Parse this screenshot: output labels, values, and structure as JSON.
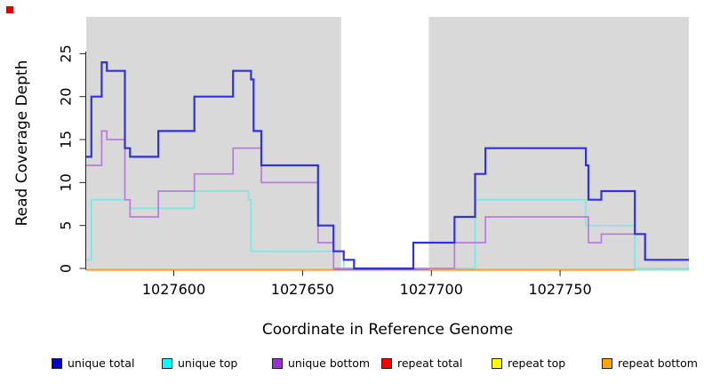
{
  "chart_data": {
    "type": "line",
    "subtype": "step",
    "title": "",
    "xlabel": "Coordinate in Reference Genome",
    "ylabel": "Read Coverage Depth",
    "xlim": [
      1027566,
      1027800
    ],
    "ylim": [
      0,
      29.3
    ],
    "x_ticks": [
      1027600,
      1027650,
      1027700,
      1027750
    ],
    "y_ticks": [
      0,
      5,
      10,
      15,
      20,
      25
    ],
    "grid": false,
    "legend_position": "bottom",
    "plot_background": {
      "color": "#D9D9D9",
      "regions": [
        [
          1027566,
          1027665
        ],
        [
          1027699,
          1027800
        ]
      ],
      "gap_note": "white band between 1027665 and 1027699"
    },
    "series": [
      {
        "name": "unique total",
        "color": "#3030E8",
        "width": 2.2,
        "x": [
          1027566,
          1027568,
          1027572,
          1027574,
          1027581,
          1027583,
          1027594,
          1027608,
          1027623,
          1027630,
          1027631,
          1027634,
          1027656,
          1027662,
          1027666,
          1027670,
          1027693,
          1027709,
          1027717,
          1027721,
          1027760,
          1027761,
          1027766,
          1027779,
          1027783
        ],
        "values": [
          13,
          20,
          24,
          23,
          14,
          13,
          16,
          20,
          23,
          22,
          16,
          12,
          5,
          2,
          1,
          0,
          3,
          6,
          11,
          14,
          12,
          8,
          9,
          4,
          1
        ]
      },
      {
        "name": "unique top",
        "color": "#7FE6E6",
        "width": 1.7,
        "x": [
          1027566,
          1027568,
          1027583,
          1027608,
          1027629,
          1027630,
          1027666,
          1027717,
          1027760,
          1027779
        ],
        "values": [
          1,
          8,
          7,
          9,
          8,
          2,
          0,
          8,
          5,
          0
        ]
      },
      {
        "name": "unique bottom",
        "color": "#B77BDB",
        "width": 1.7,
        "x": [
          1027566,
          1027572,
          1027574,
          1027581,
          1027583,
          1027594,
          1027608,
          1027623,
          1027634,
          1027656,
          1027662,
          1027709,
          1027721,
          1027761,
          1027766,
          1027783
        ],
        "values": [
          12,
          16,
          15,
          8,
          6,
          9,
          11,
          14,
          10,
          3,
          0,
          3,
          6,
          3,
          4,
          1
        ]
      },
      {
        "name": "repeat total",
        "flat_value": 0,
        "color": "#E25B66",
        "width": 1.5,
        "layer": "back",
        "segments": [
          [
            1027566,
            1027800
          ]
        ]
      },
      {
        "name": "repeat top",
        "flat_value": 0,
        "color": "#A8DFA8",
        "width": 1.7,
        "layer": "front",
        "segments": [
          [
            1027779,
            1027800
          ]
        ]
      },
      {
        "name": "repeat bottom",
        "flat_value": 0,
        "color": "#FF9E1A",
        "width": 2,
        "layer": "front",
        "segments": [
          [
            1027566,
            1027662
          ],
          [
            1027699,
            1027779
          ]
        ]
      }
    ],
    "corner_marker": {
      "color": "#E00000"
    }
  },
  "legend": {
    "items": [
      {
        "label": "unique total",
        "color": "#0000CC"
      },
      {
        "label": "unique top",
        "color": "#00FFFF"
      },
      {
        "label": "unique bottom",
        "color": "#9933CC"
      },
      {
        "label": "repeat total",
        "color": "#FF0000"
      },
      {
        "label": "repeat top",
        "color": "#FFFF00"
      },
      {
        "label": "repeat bottom",
        "color": "#FFA500"
      }
    ]
  }
}
